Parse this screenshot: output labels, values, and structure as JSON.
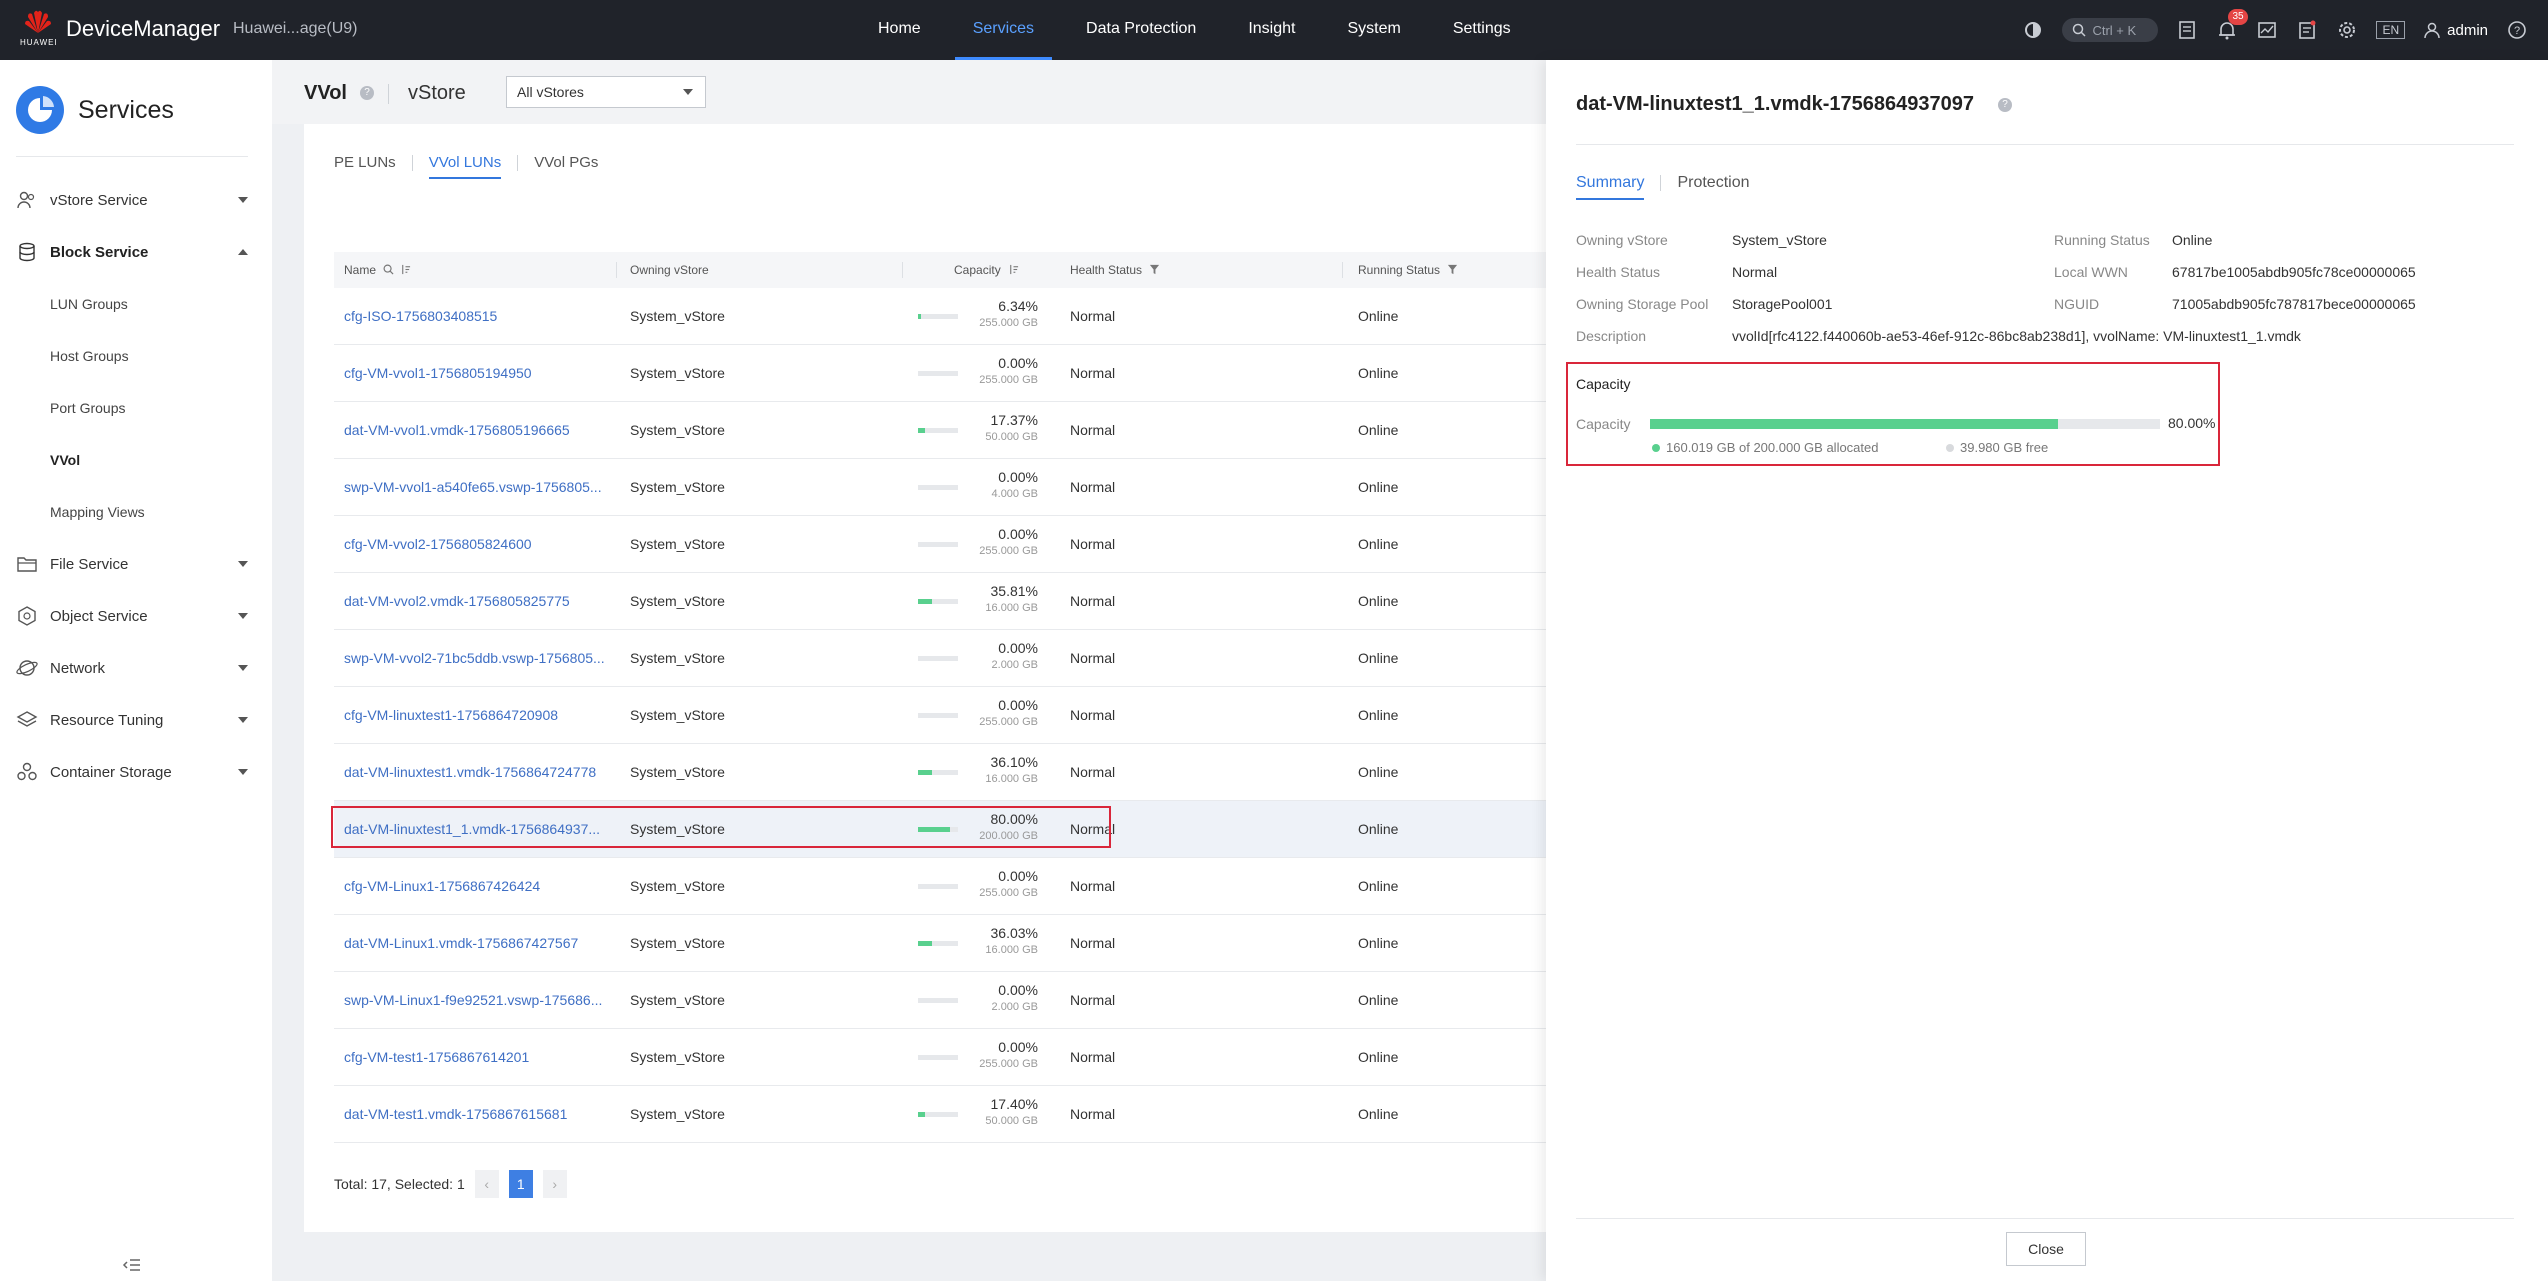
{
  "topbar": {
    "logo_text": "HUAWEI",
    "app_name": "DeviceManager",
    "device_name": "Huawei...age(U9)",
    "nav": [
      "Home",
      "Services",
      "Data Protection",
      "Insight",
      "System",
      "Settings"
    ],
    "active_nav": "Services",
    "search_shortcut": "Ctrl + K",
    "alarm_count": "35",
    "language": "EN",
    "user": "admin"
  },
  "sidebar": {
    "title": "Services",
    "items": {
      "vstore": "vStore Service",
      "block": "Block Service",
      "lun_groups": "LUN Groups",
      "host_groups": "Host Groups",
      "port_groups": "Port Groups",
      "vvol": "VVol",
      "mapping_views": "Mapping Views",
      "file": "File Service",
      "object": "Object Service",
      "network": "Network",
      "resource_tuning": "Resource Tuning",
      "container_storage": "Container Storage"
    }
  },
  "header": {
    "title": "VVol",
    "vstore_label": "vStore",
    "vstore_select": "All vStores",
    "help": "?"
  },
  "tabs": [
    "PE LUNs",
    "VVol LUNs",
    "VVol PGs"
  ],
  "table": {
    "columns": {
      "name": "Name",
      "owning_vstore": "Owning vStore",
      "capacity": "Capacity",
      "health": "Health Status",
      "running": "Running Status"
    },
    "rows": [
      {
        "name": "cfg-ISO-1756803408515",
        "vstore": "System_vStore",
        "pct": "6.34%",
        "fill": 6.34,
        "total": "255.000 GB",
        "health": "Normal",
        "running": "Online"
      },
      {
        "name": "cfg-VM-vvol1-1756805194950",
        "vstore": "System_vStore",
        "pct": "0.00%",
        "fill": 0,
        "total": "255.000 GB",
        "health": "Normal",
        "running": "Online"
      },
      {
        "name": "dat-VM-vvol1.vmdk-1756805196665",
        "vstore": "System_vStore",
        "pct": "17.37%",
        "fill": 17.37,
        "total": "50.000 GB",
        "health": "Normal",
        "running": "Online"
      },
      {
        "name": "swp-VM-vvol1-a540fe65.vswp-1756805...",
        "vstore": "System_vStore",
        "pct": "0.00%",
        "fill": 0,
        "total": "4.000 GB",
        "health": "Normal",
        "running": "Online"
      },
      {
        "name": "cfg-VM-vvol2-1756805824600",
        "vstore": "System_vStore",
        "pct": "0.00%",
        "fill": 0,
        "total": "255.000 GB",
        "health": "Normal",
        "running": "Online"
      },
      {
        "name": "dat-VM-vvol2.vmdk-1756805825775",
        "vstore": "System_vStore",
        "pct": "35.81%",
        "fill": 35.81,
        "total": "16.000 GB",
        "health": "Normal",
        "running": "Online"
      },
      {
        "name": "swp-VM-vvol2-71bc5ddb.vswp-1756805...",
        "vstore": "System_vStore",
        "pct": "0.00%",
        "fill": 0,
        "total": "2.000 GB",
        "health": "Normal",
        "running": "Online"
      },
      {
        "name": "cfg-VM-linuxtest1-1756864720908",
        "vstore": "System_vStore",
        "pct": "0.00%",
        "fill": 0,
        "total": "255.000 GB",
        "health": "Normal",
        "running": "Online"
      },
      {
        "name": "dat-VM-linuxtest1.vmdk-1756864724778",
        "vstore": "System_vStore",
        "pct": "36.10%",
        "fill": 36.1,
        "total": "16.000 GB",
        "health": "Normal",
        "running": "Online"
      },
      {
        "name": "dat-VM-linuxtest1_1.vmdk-1756864937...",
        "vstore": "System_vStore",
        "pct": "80.00%",
        "fill": 80,
        "total": "200.000 GB",
        "health": "Normal",
        "running": "Online",
        "selected": true
      },
      {
        "name": "cfg-VM-Linux1-1756867426424",
        "vstore": "System_vStore",
        "pct": "0.00%",
        "fill": 0,
        "total": "255.000 GB",
        "health": "Normal",
        "running": "Online"
      },
      {
        "name": "dat-VM-Linux1.vmdk-1756867427567",
        "vstore": "System_vStore",
        "pct": "36.03%",
        "fill": 36.03,
        "total": "16.000 GB",
        "health": "Normal",
        "running": "Online"
      },
      {
        "name": "swp-VM-Linux1-f9e92521.vswp-175686...",
        "vstore": "System_vStore",
        "pct": "0.00%",
        "fill": 0,
        "total": "2.000 GB",
        "health": "Normal",
        "running": "Online"
      },
      {
        "name": "cfg-VM-test1-1756867614201",
        "vstore": "System_vStore",
        "pct": "0.00%",
        "fill": 0,
        "total": "255.000 GB",
        "health": "Normal",
        "running": "Online"
      },
      {
        "name": "dat-VM-test1.vmdk-1756867615681",
        "vstore": "System_vStore",
        "pct": "17.40%",
        "fill": 17.4,
        "total": "50.000 GB",
        "health": "Normal",
        "running": "Online"
      }
    ]
  },
  "pager": {
    "summary": "Total: 17, Selected: 1",
    "prev": "‹",
    "page": "1",
    "next": "›"
  },
  "drawer": {
    "title": "dat-VM-linuxtest1_1.vmdk-1756864937097",
    "tabs": [
      "Summary",
      "Protection"
    ],
    "fields": {
      "owning_vstore_label": "Owning vStore",
      "owning_vstore": "System_vStore",
      "health_label": "Health Status",
      "health": "Normal",
      "pool_label": "Owning Storage Pool",
      "pool": "StoragePool001",
      "description_label": "Description",
      "description": "vvolId[rfc4122.f440060b-ae53-46ef-912c-86bc8ab238d1], vvolName: VM-linuxtest1_1.vmdk",
      "running_label": "Running Status",
      "running": "Online",
      "wwn_label": "Local WWN",
      "wwn": "67817be1005abdb905fc78ce00000065",
      "nguid_label": "NGUID",
      "nguid": "71005abdb905fc787817bece00000065"
    },
    "capacity": {
      "title": "Capacity",
      "label": "Capacity",
      "pct": "80.00%",
      "fill": 80,
      "allocated": "160.019 GB of 200.000 GB allocated",
      "free": "39.980 GB free"
    },
    "close": "Close"
  },
  "colors": {
    "accent": "#3377dd",
    "bar_fill": "#59d08e",
    "highlight": "#d9263a",
    "topbar": "#20232a"
  }
}
